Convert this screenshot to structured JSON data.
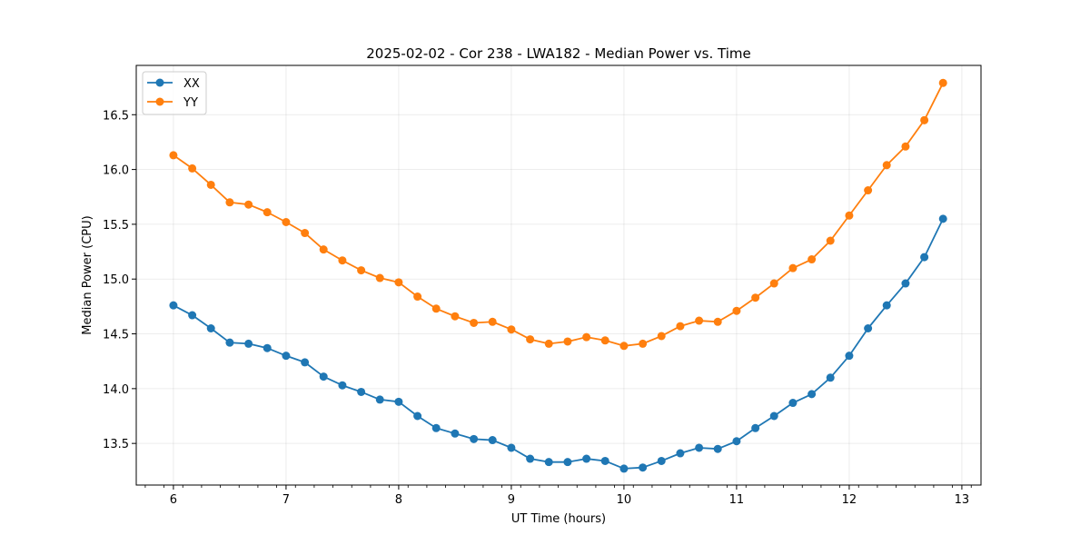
{
  "chart_data": {
    "type": "line",
    "title": "2025-02-02 - Cor 238 - LWA182 - Median Power vs. Time",
    "xlabel": "UT Time (hours)",
    "ylabel": "Median Power (CPU)",
    "xlim": [
      5.67,
      13.17
    ],
    "ylim": [
      13.12,
      16.95
    ],
    "xticks": [
      6,
      7,
      8,
      9,
      10,
      11,
      12,
      13
    ],
    "xtick_labels": [
      "6",
      "7",
      "8",
      "9",
      "10",
      "11",
      "12",
      "13"
    ],
    "yticks": [
      13.5,
      14.0,
      14.5,
      15.0,
      15.5,
      16.0,
      16.5
    ],
    "ytick_labels": [
      "13.5",
      "14.0",
      "14.5",
      "15.0",
      "15.5",
      "16.0",
      "16.5"
    ],
    "grid": true,
    "legend_position": "top-left",
    "x": [
      6.0,
      6.167,
      6.333,
      6.5,
      6.667,
      6.833,
      7.0,
      7.167,
      7.333,
      7.5,
      7.667,
      7.833,
      8.0,
      8.167,
      8.333,
      8.5,
      8.667,
      8.833,
      9.0,
      9.167,
      9.333,
      9.5,
      9.667,
      9.833,
      10.0,
      10.167,
      10.333,
      10.5,
      10.667,
      10.833,
      11.0,
      11.167,
      11.333,
      11.5,
      11.667,
      11.833,
      12.0,
      12.167,
      12.333,
      12.5,
      12.667,
      12.833
    ],
    "series": [
      {
        "name": "XX",
        "color": "#1f77b4",
        "values": [
          14.76,
          14.67,
          14.55,
          14.42,
          14.41,
          14.37,
          14.3,
          14.24,
          14.11,
          14.03,
          13.97,
          13.9,
          13.88,
          13.75,
          13.64,
          13.59,
          13.54,
          13.53,
          13.46,
          13.36,
          13.33,
          13.33,
          13.36,
          13.34,
          13.27,
          13.28,
          13.34,
          13.41,
          13.46,
          13.45,
          13.52,
          13.64,
          13.75,
          13.87,
          13.95,
          14.1,
          14.3,
          14.55,
          14.76,
          14.96,
          15.2,
          15.55
        ]
      },
      {
        "name": "YY",
        "color": "#ff7f0e",
        "values": [
          16.13,
          16.01,
          15.86,
          15.7,
          15.68,
          15.61,
          15.52,
          15.42,
          15.27,
          15.17,
          15.08,
          15.01,
          14.97,
          14.84,
          14.73,
          14.66,
          14.6,
          14.61,
          14.54,
          14.45,
          14.41,
          14.43,
          14.47,
          14.44,
          14.39,
          14.41,
          14.48,
          14.57,
          14.62,
          14.61,
          14.71,
          14.83,
          14.96,
          15.1,
          15.18,
          15.35,
          15.58,
          15.81,
          16.04,
          16.21,
          16.45,
          16.79
        ]
      }
    ]
  }
}
